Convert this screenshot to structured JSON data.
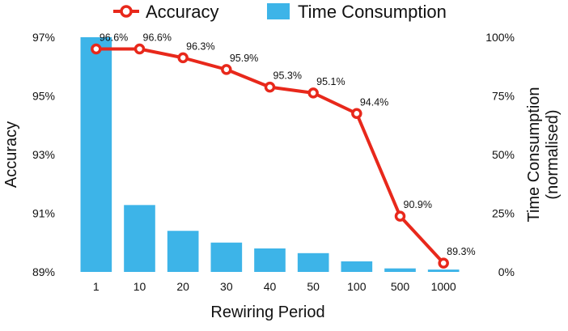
{
  "chart_data": {
    "type": "bar+line",
    "categories": [
      "1",
      "10",
      "20",
      "30",
      "40",
      "50",
      "100",
      "500",
      "1000"
    ],
    "series": [
      {
        "name": "Accuracy",
        "type": "line",
        "axis": "left",
        "color": "#e8281b",
        "values": [
          96.6,
          96.6,
          96.3,
          95.9,
          95.3,
          95.1,
          94.4,
          90.9,
          89.3
        ],
        "labels": [
          "96.6%",
          "96.6%",
          "96.3%",
          "95.9%",
          "95.3%",
          "95.1%",
          "94.4%",
          "90.9%",
          "89.3%"
        ]
      },
      {
        "name": "Time Consumption",
        "type": "bar",
        "axis": "right",
        "color": "#3db4e8",
        "values": [
          100,
          28.5,
          17.5,
          12.5,
          10,
          8,
          4.5,
          1.5,
          1
        ]
      }
    ],
    "xlabel": "Rewiring Period",
    "ylabel_left": "Accuracy",
    "ylabel_right": [
      "Time Consumption",
      "(normalised)"
    ],
    "ylim_left": [
      89,
      97
    ],
    "ylim_right": [
      0,
      100
    ],
    "yticks_left": [
      {
        "value": 97,
        "label": "97%"
      },
      {
        "value": 95,
        "label": "95%"
      },
      {
        "value": 93,
        "label": "93%"
      },
      {
        "value": 91,
        "label": "91%"
      },
      {
        "value": 89,
        "label": "89%"
      }
    ],
    "yticks_right": [
      {
        "value": 100,
        "label": "100%"
      },
      {
        "value": 75,
        "label": "75%"
      },
      {
        "value": 50,
        "label": "50%"
      },
      {
        "value": 25,
        "label": "25%"
      },
      {
        "value": 0,
        "label": "0%"
      }
    ],
    "legend": {
      "position": "top-center",
      "entries": [
        "Accuracy",
        "Time Consumption"
      ]
    },
    "grid": false
  }
}
